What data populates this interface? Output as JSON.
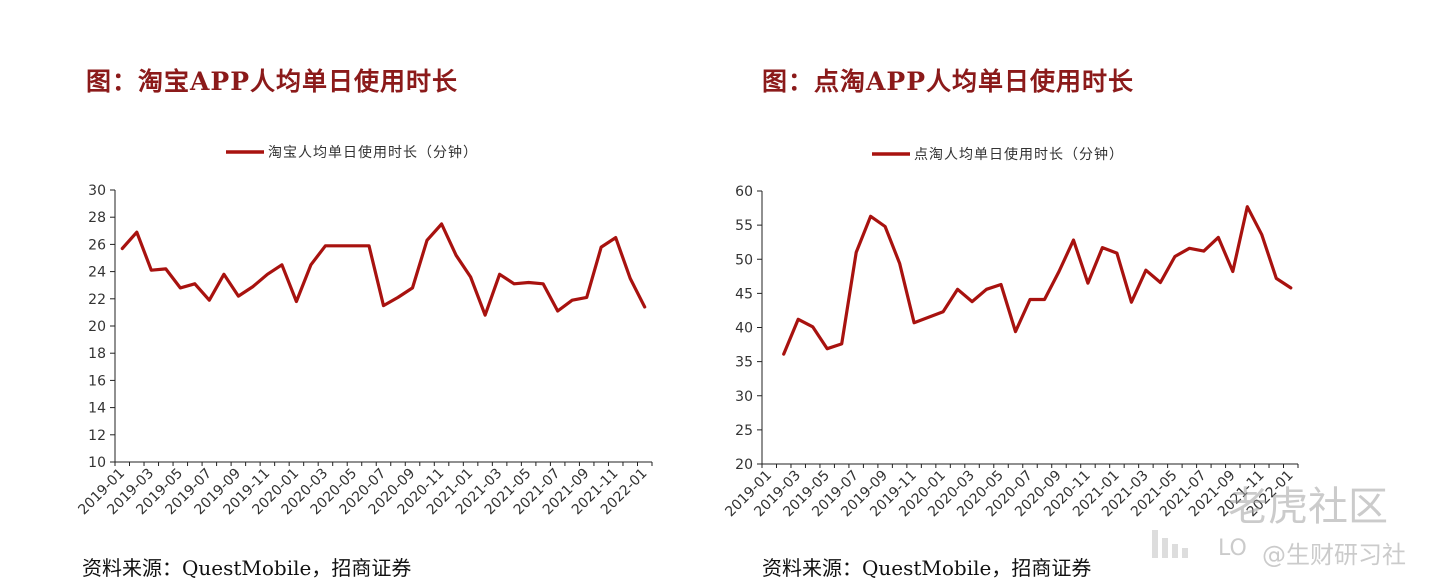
{
  "colors": {
    "title": "#8b1a1a",
    "series": "#a8120f",
    "axis": "#222222"
  },
  "watermark": {
    "line1": "老虎社区",
    "line2": "@生财研习社",
    "logo_text": "LO"
  },
  "chart_data": [
    {
      "type": "line",
      "title": "图：淘宝APP人均单日使用时长",
      "source": "资料来源：QuestMobile，招商证券",
      "legend": "top-center",
      "grid": false,
      "ylim": [
        10,
        30
      ],
      "yticks": [
        10,
        12,
        14,
        16,
        18,
        20,
        22,
        24,
        26,
        28,
        30
      ],
      "tick_labels": [
        "2019-01",
        "2019-03",
        "2019-05",
        "2019-07",
        "2019-09",
        "2019-11",
        "2020-01",
        "2020-03",
        "2020-05",
        "2020-07",
        "2020-09",
        "2020-11",
        "2021-01",
        "2021-03",
        "2021-05",
        "2021-07",
        "2021-09",
        "2021-11",
        "2022-01"
      ],
      "x": [
        "2019-01",
        "2019-02",
        "2019-03",
        "2019-04",
        "2019-05",
        "2019-06",
        "2019-07",
        "2019-08",
        "2019-09",
        "2019-10",
        "2019-11",
        "2019-12",
        "2020-01",
        "2020-02",
        "2020-03",
        "2020-04",
        "2020-05",
        "2020-06",
        "2020-07",
        "2020-08",
        "2020-09",
        "2020-10",
        "2020-11",
        "2020-12",
        "2021-01",
        "2021-02",
        "2021-03",
        "2021-04",
        "2021-05",
        "2021-06",
        "2021-07",
        "2021-08",
        "2021-09",
        "2021-10",
        "2021-11",
        "2021-12",
        "2022-01"
      ],
      "series": [
        {
          "name": "淘宝人均单日使用时长（分钟）",
          "values": [
            25.7,
            26.9,
            24.1,
            24.2,
            22.8,
            23.1,
            21.9,
            23.8,
            22.2,
            22.9,
            23.8,
            24.5,
            21.8,
            24.5,
            25.9,
            25.9,
            25.9,
            25.9,
            21.5,
            22.1,
            22.8,
            26.3,
            27.5,
            25.2,
            23.6,
            20.8,
            23.8,
            23.1,
            23.2,
            23.1,
            21.1,
            21.9,
            22.1,
            25.8,
            26.5,
            23.5,
            21.4
          ]
        }
      ]
    },
    {
      "type": "line",
      "title": "图：点淘APP人均单日使用时长",
      "source": "资料来源：QuestMobile，招商证券",
      "legend": "top-center",
      "grid": false,
      "ylim": [
        20,
        60
      ],
      "yticks": [
        20,
        25,
        30,
        35,
        40,
        45,
        50,
        55,
        60
      ],
      "tick_labels": [
        "2019-01",
        "2019-03",
        "2019-05",
        "2019-07",
        "2019-09",
        "2019-11",
        "2020-01",
        "2020-03",
        "2020-05",
        "2020-07",
        "2020-09",
        "2020-11",
        "2021-01",
        "2021-03",
        "2021-05",
        "2021-07",
        "2021-09",
        "2021-11",
        "2022-01"
      ],
      "x": [
        "2019-02",
        "2019-03",
        "2019-04",
        "2019-05",
        "2019-06",
        "2019-07",
        "2019-08",
        "2019-09",
        "2019-10",
        "2019-11",
        "2019-12",
        "2020-01",
        "2020-02",
        "2020-03",
        "2020-04",
        "2020-05",
        "2020-06",
        "2020-07",
        "2020-08",
        "2020-09",
        "2020-10",
        "2020-11",
        "2020-12",
        "2021-01",
        "2021-02",
        "2021-03",
        "2021-04",
        "2021-05",
        "2021-06",
        "2021-07",
        "2021-08",
        "2021-09",
        "2021-10",
        "2021-11",
        "2021-12",
        "2022-01"
      ],
      "series": [
        {
          "name": "点淘人均单日使用时长（分钟）",
          "values": [
            36.1,
            41.2,
            40.1,
            36.9,
            37.6,
            51.0,
            56.3,
            54.8,
            49.4,
            40.7,
            41.5,
            42.3,
            45.6,
            43.8,
            45.6,
            46.3,
            39.4,
            44.1,
            44.1,
            48.2,
            52.8,
            46.5,
            51.7,
            50.9,
            43.7,
            48.4,
            46.6,
            50.4,
            51.6,
            51.2,
            53.2,
            48.2,
            57.7,
            53.6,
            47.2,
            45.8
          ]
        }
      ]
    }
  ]
}
